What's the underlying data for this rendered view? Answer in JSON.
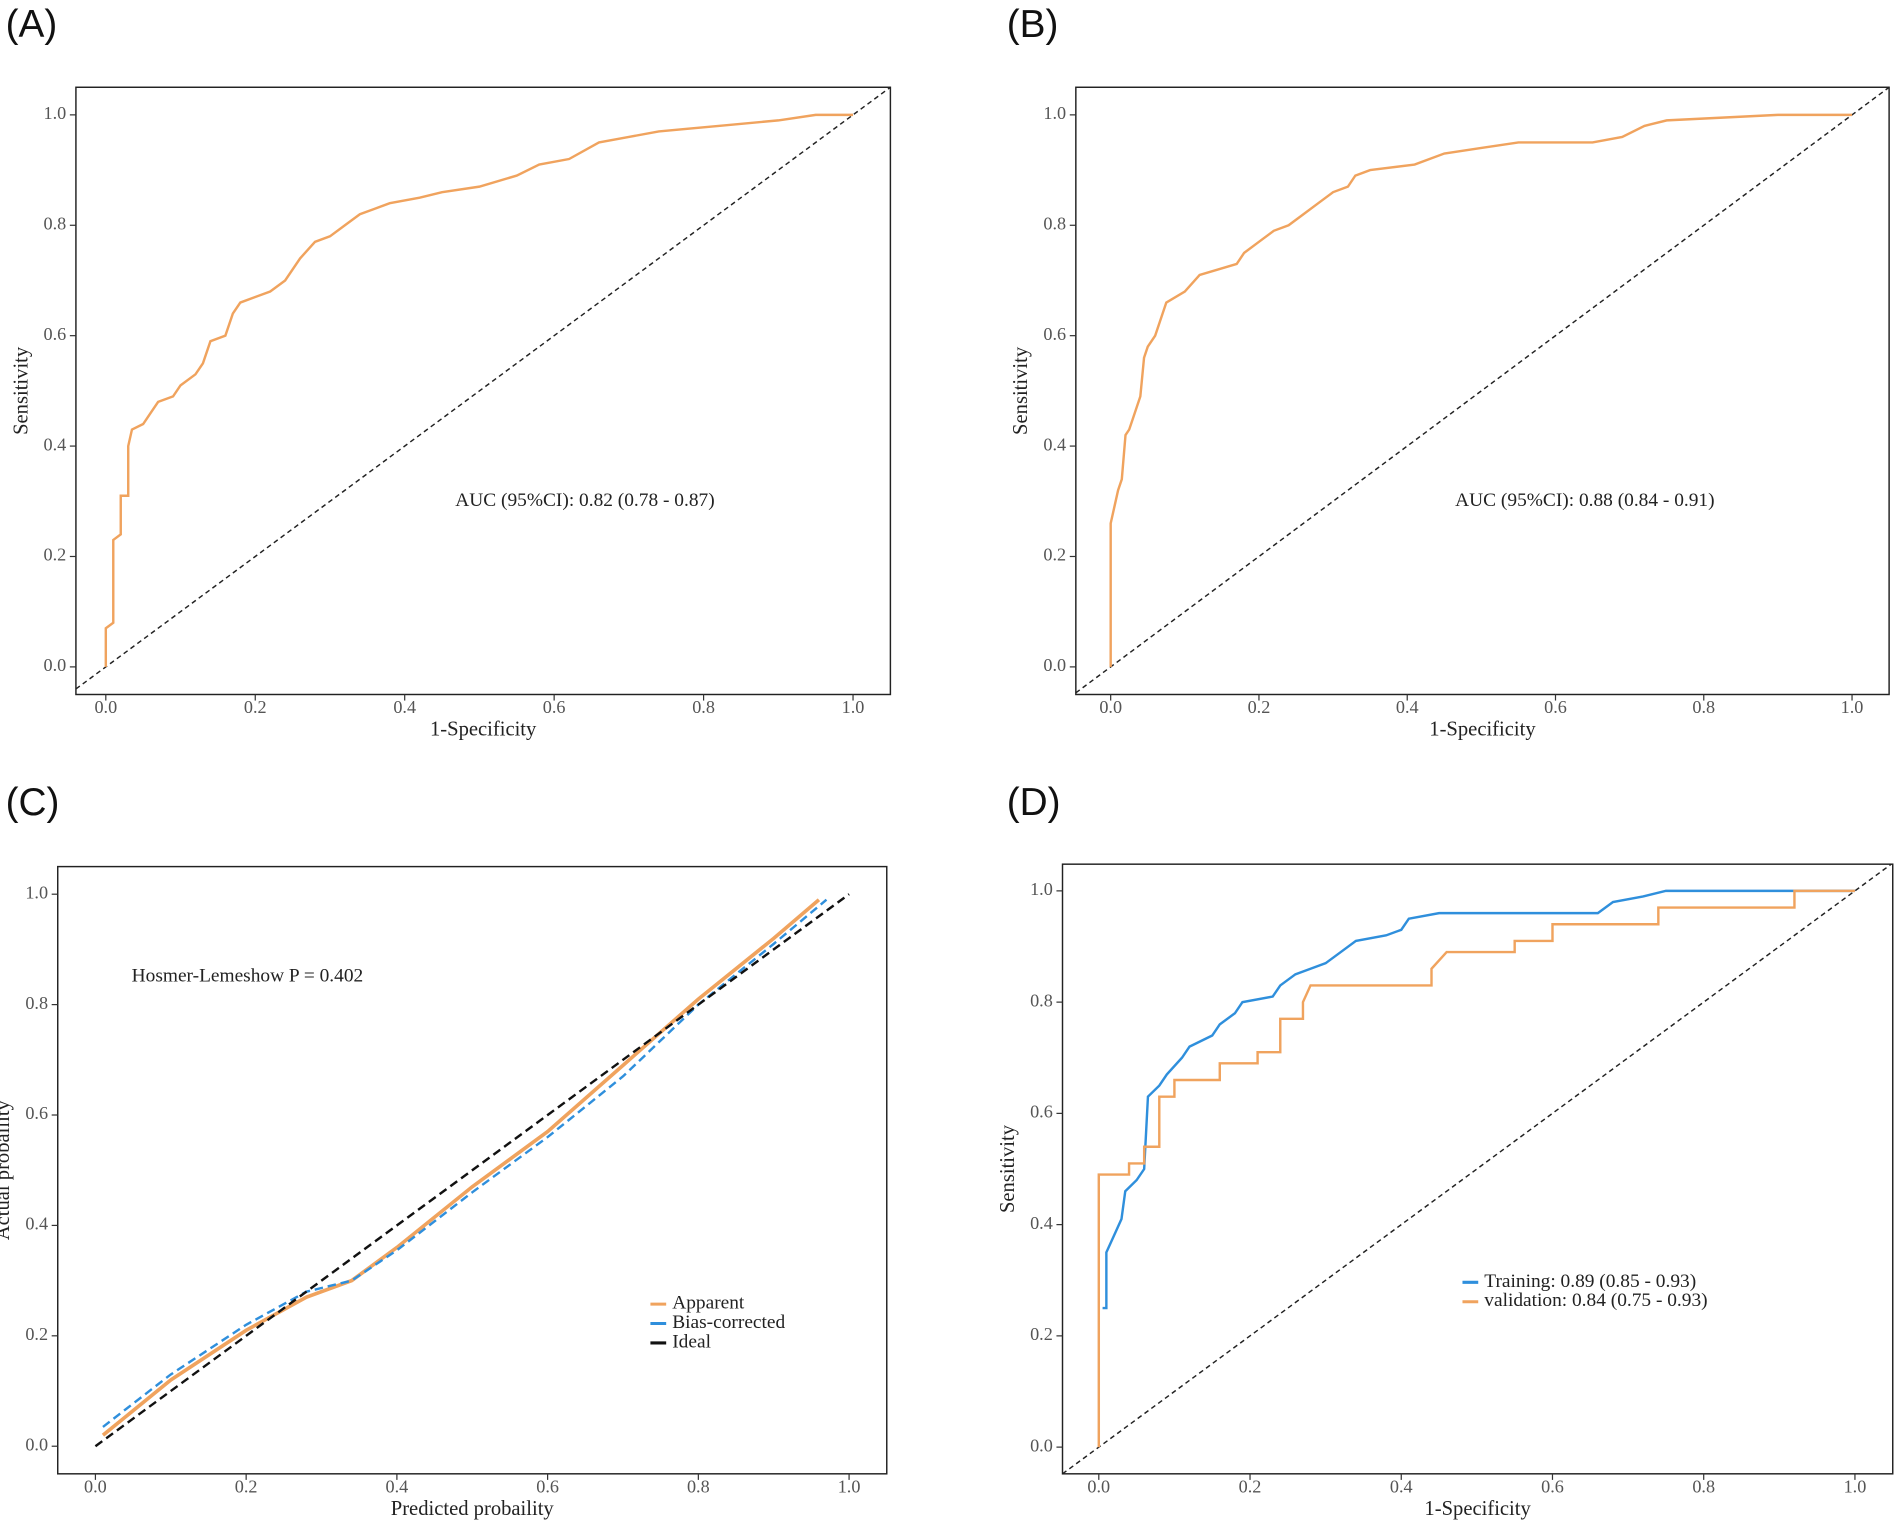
{
  "chart_data": [
    {
      "type": "line",
      "label": "(A)",
      "xlabel": "1-Specificity",
      "ylabel": "Sensitivity",
      "annotation": "AUC (95%CI): 0.82 (0.78 - 0.87)",
      "reference_diagonal": true,
      "xlim": [
        -0.04,
        1.05
      ],
      "ylim": [
        -0.05,
        1.05
      ],
      "xticks": [
        {
          "value": 0,
          "label": "0.0"
        },
        0.2,
        0.4,
        0.6,
        0.8,
        {
          "value": 1,
          "label": "1.0"
        }
      ],
      "yticks": [
        {
          "value": 0,
          "label": "0.0"
        },
        0.2,
        0.4,
        0.6,
        0.8,
        {
          "value": 1,
          "label": "1.0"
        }
      ],
      "series": [
        {
          "color": "#f0a35e",
          "x": [
            0,
            0,
            0.01,
            0.01,
            0.02,
            0.02,
            0.03,
            0.03,
            0.035,
            0.05,
            0.06,
            0.07,
            0.09,
            0.1,
            0.12,
            0.13,
            0.14,
            0.16,
            0.17,
            0.18,
            0.2,
            0.22,
            0.24,
            0.26,
            0.28,
            0.3,
            0.32,
            0.34,
            0.36,
            0.38,
            0.42,
            0.45,
            0.5,
            0.55,
            0.58,
            0.62,
            0.66,
            0.7,
            0.74,
            0.82,
            0.9,
            0.95,
            1
          ],
          "values": [
            0,
            0.07,
            0.08,
            0.23,
            0.24,
            0.31,
            0.31,
            0.4,
            0.43,
            0.44,
            0.46,
            0.48,
            0.49,
            0.51,
            0.53,
            0.55,
            0.59,
            0.6,
            0.64,
            0.66,
            0.67,
            0.68,
            0.7,
            0.74,
            0.77,
            0.78,
            0.8,
            0.82,
            0.83,
            0.84,
            0.85,
            0.86,
            0.87,
            0.89,
            0.91,
            0.92,
            0.95,
            0.96,
            0.97,
            0.98,
            0.99,
            1,
            1
          ]
        }
      ]
    },
    {
      "type": "line",
      "label": "(B)",
      "xlabel": "1-Specificity",
      "ylabel": "Sensitivity",
      "annotation": "AUC (95%CI): 0.88 (0.84 - 0.91)",
      "reference_diagonal": true,
      "xlim": [
        -0.047,
        1.05
      ],
      "ylim": [
        -0.05,
        1.05
      ],
      "xticks": [
        {
          "value": 0,
          "label": "0.0"
        },
        0.2,
        0.4,
        0.6,
        0.8,
        {
          "value": 1,
          "label": "1.0"
        }
      ],
      "yticks": [
        {
          "value": 0,
          "label": "0.0"
        },
        0.2,
        0.4,
        0.6,
        0.8,
        {
          "value": 1,
          "label": "1.0"
        }
      ],
      "series": [
        {
          "color": "#f0a35e",
          "x": [
            0,
            0,
            0.005,
            0.01,
            0.015,
            0.02,
            0.025,
            0.03,
            0.04,
            0.045,
            0.05,
            0.06,
            0.07,
            0.075,
            0.1,
            0.12,
            0.17,
            0.18,
            0.2,
            0.22,
            0.24,
            0.26,
            0.28,
            0.3,
            0.32,
            0.33,
            0.35,
            0.41,
            0.45,
            0.5,
            0.55,
            0.65,
            0.69,
            0.72,
            0.75,
            0.9,
            1
          ],
          "values": [
            0,
            0.26,
            0.29,
            0.32,
            0.34,
            0.42,
            0.43,
            0.45,
            0.49,
            0.56,
            0.58,
            0.6,
            0.64,
            0.66,
            0.68,
            0.71,
            0.73,
            0.75,
            0.77,
            0.79,
            0.8,
            0.82,
            0.84,
            0.86,
            0.87,
            0.89,
            0.9,
            0.91,
            0.93,
            0.94,
            0.95,
            0.95,
            0.96,
            0.98,
            0.99,
            1,
            1
          ]
        }
      ]
    },
    {
      "type": "line",
      "label": "(C)",
      "xlabel": "Predicted probaility",
      "ylabel": "Actual probaility",
      "annotation": "Hosmer-Lemeshow  P  = 0.402",
      "legend": "bottom-right",
      "xlim": [
        -0.05,
        1.05
      ],
      "ylim": [
        -0.05,
        1.05
      ],
      "xticks": [
        {
          "value": 0,
          "label": "0.0"
        },
        0.2,
        0.4,
        0.6,
        0.8,
        {
          "value": 1,
          "label": "1.0"
        }
      ],
      "yticks": [
        {
          "value": 0,
          "label": "0.0"
        },
        0.2,
        0.4,
        0.6,
        0.8,
        {
          "value": 1,
          "label": "1.0"
        }
      ],
      "series": [
        {
          "name": "Apparent",
          "color": "#f0a35e",
          "style": "solid",
          "x": [
            0.01,
            0.1,
            0.2,
            0.28,
            0.34,
            0.4,
            0.5,
            0.6,
            0.7,
            0.8,
            0.9,
            0.96
          ],
          "values": [
            0.02,
            0.12,
            0.21,
            0.27,
            0.3,
            0.36,
            0.47,
            0.57,
            0.69,
            0.81,
            0.92,
            0.99
          ]
        },
        {
          "name": "Bias-corrected",
          "color": "#2f8fdc",
          "style": "dashed",
          "x": [
            0.01,
            0.1,
            0.2,
            0.28,
            0.34,
            0.4,
            0.5,
            0.6,
            0.7,
            0.8,
            0.9,
            0.97
          ],
          "values": [
            0.035,
            0.13,
            0.22,
            0.28,
            0.3,
            0.355,
            0.46,
            0.56,
            0.67,
            0.8,
            0.91,
            0.99
          ]
        },
        {
          "name": "Ideal",
          "color": "#111111",
          "style": "dashed",
          "x": [
            0,
            1
          ],
          "values": [
            0,
            1
          ]
        }
      ]
    },
    {
      "type": "line",
      "label": "(D)",
      "xlabel": "1-Specificity",
      "ylabel": "Sensitivity",
      "reference_diagonal": true,
      "legend": "bottom-right",
      "xlim": [
        -0.048,
        1.05
      ],
      "ylim": [
        -0.048,
        1.048
      ],
      "xticks": [
        {
          "value": 0,
          "label": "0.0"
        },
        0.2,
        0.4,
        0.6,
        0.8,
        {
          "value": 1,
          "label": "1.0"
        }
      ],
      "yticks": [
        {
          "value": 0,
          "label": "0.0"
        },
        0.2,
        0.4,
        0.6,
        0.8,
        {
          "value": 1,
          "label": "1.0"
        }
      ],
      "series": [
        {
          "name": "Training: 0.89 (0.85 - 0.93)",
          "color": "#2f8fdc",
          "style": "solid",
          "x": [
            0.005,
            0.01,
            0.01,
            0.02,
            0.03,
            0.035,
            0.05,
            0.06,
            0.065,
            0.08,
            0.09,
            0.11,
            0.12,
            0.15,
            0.16,
            0.18,
            0.19,
            0.23,
            0.24,
            0.26,
            0.28,
            0.3,
            0.32,
            0.34,
            0.38,
            0.4,
            0.41,
            0.45,
            0.66,
            0.68,
            0.72,
            0.75,
            1
          ],
          "values": [
            0.25,
            0.25,
            0.35,
            0.38,
            0.41,
            0.46,
            0.48,
            0.5,
            0.63,
            0.65,
            0.67,
            0.7,
            0.72,
            0.74,
            0.76,
            0.78,
            0.8,
            0.81,
            0.83,
            0.85,
            0.86,
            0.87,
            0.89,
            0.91,
            0.92,
            0.93,
            0.95,
            0.96,
            0.96,
            0.98,
            0.99,
            1,
            1
          ]
        },
        {
          "name": "validation: 0.84 (0.75 - 0.93)",
          "color": "#f0a35e",
          "style": "solid",
          "x": [
            0,
            0,
            0.04,
            0.04,
            0.06,
            0.06,
            0.08,
            0.08,
            0.1,
            0.1,
            0.16,
            0.16,
            0.21,
            0.21,
            0.24,
            0.24,
            0.27,
            0.27,
            0.28,
            0.44,
            0.44,
            0.46,
            0.55,
            0.55,
            0.6,
            0.6,
            0.74,
            0.74,
            0.92,
            0.92,
            1
          ],
          "values": [
            0,
            0.49,
            0.49,
            0.51,
            0.51,
            0.54,
            0.54,
            0.63,
            0.63,
            0.66,
            0.66,
            0.69,
            0.69,
            0.71,
            0.71,
            0.77,
            0.77,
            0.8,
            0.83,
            0.83,
            0.86,
            0.89,
            0.89,
            0.91,
            0.91,
            0.94,
            0.94,
            0.97,
            0.97,
            1,
            1
          ]
        }
      ]
    }
  ]
}
